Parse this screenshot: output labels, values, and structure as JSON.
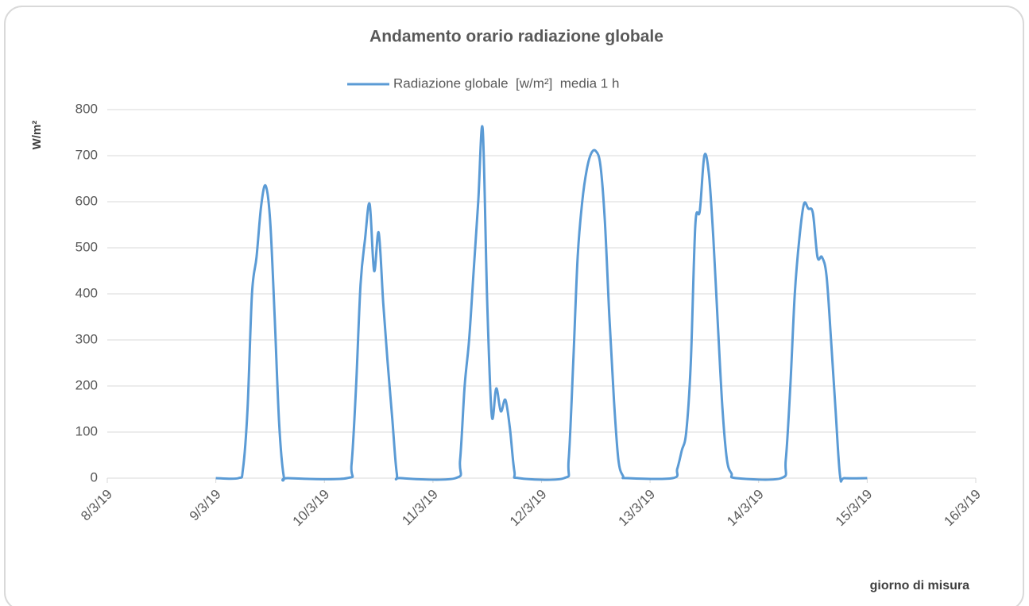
{
  "chart_data": {
    "type": "line",
    "title": "Andamento orario radiazione globale",
    "ylabel": "W/m²",
    "xlabel": "giorno di misura",
    "legend": "top",
    "grid": true,
    "xlim": [
      8,
      16
    ],
    "xticks": [
      {
        "value": 8,
        "label": "8/3/19"
      },
      {
        "value": 9,
        "label": "9/3/19"
      },
      {
        "value": 10,
        "label": "10/3/19"
      },
      {
        "value": 11,
        "label": "11/3/19"
      },
      {
        "value": 12,
        "label": "12/3/19"
      },
      {
        "value": 13,
        "label": "13/3/19"
      },
      {
        "value": 14,
        "label": "14/3/19"
      },
      {
        "value": 15,
        "label": "15/3/19"
      },
      {
        "value": 16,
        "label": "16/3/19"
      }
    ],
    "ylim": [
      0,
      800
    ],
    "yticks": [
      0,
      100,
      200,
      300,
      400,
      500,
      600,
      700,
      800
    ],
    "x": [
      9,
      9.208,
      9.25,
      9.292,
      9.333,
      9.375,
      9.417,
      9.458,
      9.5,
      9.542,
      9.583,
      9.625,
      9.667,
      10.208,
      10.25,
      10.292,
      10.333,
      10.375,
      10.417,
      10.458,
      10.5,
      10.542,
      10.583,
      10.625,
      10.667,
      10.708,
      11.208,
      11.25,
      11.292,
      11.333,
      11.375,
      11.417,
      11.458,
      11.5,
      11.542,
      11.583,
      11.625,
      11.667,
      11.708,
      11.75,
      11.792,
      12.208,
      12.25,
      12.292,
      12.333,
      12.375,
      12.417,
      12.458,
      12.5,
      12.542,
      12.583,
      12.625,
      12.667,
      12.708,
      12.75,
      12.792,
      13.208,
      13.25,
      13.292,
      13.333,
      13.375,
      13.417,
      13.458,
      13.5,
      13.542,
      13.583,
      13.625,
      13.667,
      13.708,
      13.75,
      13.792,
      14.208,
      14.25,
      14.292,
      14.333,
      14.375,
      14.417,
      14.458,
      14.5,
      14.542,
      14.583,
      14.625,
      14.667,
      14.708,
      14.75,
      14.792,
      15
    ],
    "series": [
      {
        "name": "Radiazione globale  [w/m²]  media 1 h",
        "color": "#5b9bd5",
        "values": [
          0,
          0,
          20,
          150,
          400,
          480,
          590,
          635,
          560,
          350,
          120,
          5,
          0,
          0,
          30,
          200,
          420,
          520,
          595,
          450,
          533,
          380,
          250,
          130,
          10,
          0,
          0,
          40,
          200,
          300,
          450,
          600,
          758,
          380,
          135,
          195,
          145,
          170,
          110,
          15,
          0,
          0,
          40,
          250,
          480,
          600,
          670,
          705,
          710,
          680,
          560,
          350,
          170,
          40,
          5,
          0,
          0,
          20,
          60,
          100,
          250,
          550,
          580,
          700,
          660,
          520,
          330,
          150,
          40,
          10,
          0,
          0,
          40,
          200,
          400,
          520,
          595,
          585,
          575,
          480,
          480,
          440,
          300,
          150,
          5,
          0,
          0
        ]
      }
    ]
  }
}
